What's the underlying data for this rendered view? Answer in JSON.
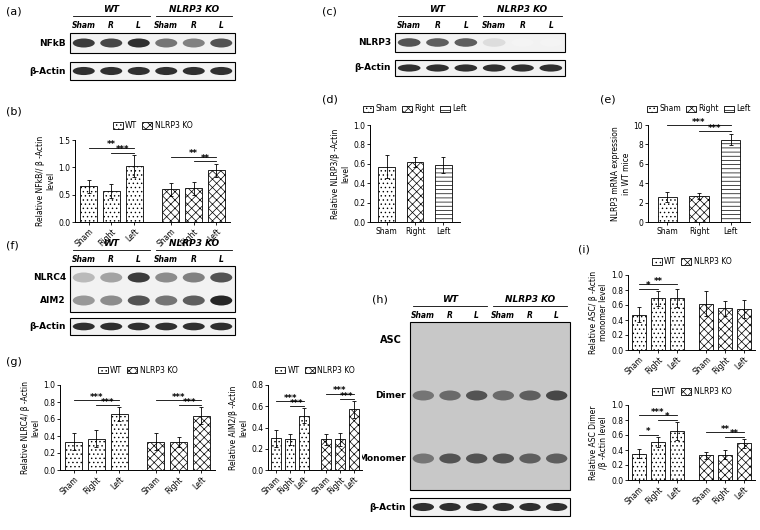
{
  "blots": [
    {
      "panel": "(a)",
      "groups": [
        "WT",
        "NLRP3 KO"
      ],
      "lanes": [
        "Sham",
        "R",
        "L"
      ],
      "boxes": [
        {
          "rows": [
            {
              "label": "NFkB",
              "band_intensity": [
                0.85,
                0.8,
                0.9,
                0.6,
                0.55,
                0.75
              ]
            }
          ]
        },
        {
          "rows": [
            {
              "label": "β-Actin",
              "band_intensity": [
                0.9,
                0.9,
                0.9,
                0.9,
                0.9,
                0.9
              ]
            }
          ]
        }
      ]
    },
    {
      "panel": "(c)",
      "groups": [
        "WT",
        "NLRP3 KO"
      ],
      "lanes": [
        "Sham",
        "R",
        "L"
      ],
      "boxes": [
        {
          "rows": [
            {
              "label": "NLRP3",
              "band_intensity": [
                0.75,
                0.7,
                0.7,
                0.15,
                0.05,
                0.05
              ]
            }
          ]
        },
        {
          "rows": [
            {
              "label": "β-Actin",
              "band_intensity": [
                0.9,
                0.9,
                0.9,
                0.9,
                0.9,
                0.9
              ]
            }
          ]
        }
      ]
    },
    {
      "panel": "(f)",
      "groups": [
        "WT",
        "NLRP3 KO"
      ],
      "lanes": [
        "Sham",
        "R",
        "L"
      ],
      "boxes": [
        {
          "rows": [
            {
              "label": "NLRC4",
              "band_intensity": [
                0.3,
                0.4,
                0.85,
                0.5,
                0.55,
                0.75
              ]
            },
            {
              "label": "AIM2",
              "band_intensity": [
                0.45,
                0.5,
                0.75,
                0.6,
                0.7,
                0.95
              ]
            }
          ]
        },
        {
          "rows": [
            {
              "label": "β-Actin",
              "band_intensity": [
                0.9,
                0.9,
                0.9,
                0.9,
                0.9,
                0.9
              ]
            }
          ]
        }
      ]
    },
    {
      "panel": "(h)",
      "groups": [
        "WT",
        "NLRP3 KO"
      ],
      "lanes": [
        "Sham",
        "R",
        "L"
      ],
      "boxes": [
        {
          "label": "ASC",
          "rows": [
            {
              "label": "Dimer",
              "band_intensity": [
                0.6,
                0.65,
                0.75,
                0.65,
                0.7,
                0.8
              ]
            },
            {
              "label": "Monomer",
              "band_intensity": [
                0.6,
                0.75,
                0.75,
                0.75,
                0.7,
                0.7
              ]
            }
          ]
        },
        {
          "rows": [
            {
              "label": "β-Actin",
              "band_intensity": [
                0.9,
                0.9,
                0.9,
                0.9,
                0.9,
                0.9
              ]
            }
          ]
        }
      ]
    }
  ],
  "chart_data": [
    {
      "type": "bar",
      "panel": "(b)",
      "y_label": "Relative NFkB// β -Actin\nlevel",
      "categories": [
        "Sham",
        "Right",
        "Left"
      ],
      "series": [
        {
          "name": "WT",
          "color": "#ffffff",
          "values": [
            0.65,
            0.57,
            1.03
          ],
          "errors": [
            0.12,
            0.13,
            0.2
          ]
        },
        {
          "name": "NLRP3 KO",
          "color": "#ffffff",
          "values": [
            0.6,
            0.62,
            0.95
          ],
          "errors": [
            0.12,
            0.12,
            0.12
          ]
        }
      ],
      "ylim": [
        0.0,
        1.5
      ],
      "yticks": [
        0.0,
        0.5,
        1.0,
        1.5
      ],
      "legend": "top",
      "significance": [
        {
          "series": "WT",
          "from": "Sham",
          "to": "Left",
          "label": "**"
        },
        {
          "series": "WT",
          "from": "Right",
          "to": "Left",
          "label": "***"
        },
        {
          "series": "NLRP3 KO",
          "from": "Sham",
          "to": "Left",
          "label": "**"
        },
        {
          "series": "NLRP3 KO",
          "from": "Right",
          "to": "Left",
          "label": "**"
        }
      ]
    },
    {
      "type": "bar",
      "panel": "(d)",
      "y_label": "Relative NLRP3/β -Actin\nlevel",
      "categories": [
        "Sham",
        "Right",
        "Left"
      ],
      "values": [
        0.57,
        0.62,
        0.59
      ],
      "errors": [
        0.12,
        0.05,
        0.08
      ],
      "colors": [
        "#ffffff",
        "#ffffff",
        "#ffffff"
      ],
      "ylim": [
        0.0,
        1.0
      ],
      "yticks": [
        0.0,
        0.2,
        0.4,
        0.6,
        0.8,
        1.0
      ],
      "legend": "top"
    },
    {
      "type": "bar",
      "panel": "(e)",
      "y_label": "NLRP3 mRNA expression\nin WT mice",
      "categories": [
        "Sham",
        "Right",
        "Left"
      ],
      "values": [
        2.6,
        2.7,
        8.5
      ],
      "errors": [
        0.5,
        0.3,
        0.6
      ],
      "colors": [
        "#ffffff",
        "#ffffff",
        "#ffffff"
      ],
      "ylim": [
        0,
        10
      ],
      "yticks": [
        0,
        2,
        4,
        6,
        8,
        10
      ],
      "legend": "top",
      "significance": [
        {
          "from": "Sham",
          "to": "Left",
          "label": "***"
        },
        {
          "from": "Right",
          "to": "Left",
          "label": "***"
        }
      ]
    },
    {
      "type": "bar",
      "panel": "(g)",
      "y_label": "Relative NLRC4/ β -Actin\nlevel",
      "categories": [
        "Sham",
        "Right",
        "Left"
      ],
      "series": [
        {
          "name": "WT",
          "color": "#ffffff",
          "values": [
            0.33,
            0.37,
            0.66
          ],
          "errors": [
            0.1,
            0.1,
            0.08
          ]
        },
        {
          "name": "NLRP3 KO",
          "color": "#ffffff",
          "values": [
            0.33,
            0.33,
            0.64
          ],
          "errors": [
            0.1,
            0.06,
            0.1
          ]
        }
      ],
      "ylim": [
        0.0,
        1.0
      ],
      "yticks": [
        0.0,
        0.2,
        0.4,
        0.6,
        0.8,
        1.0
      ],
      "legend": "top",
      "significance": [
        {
          "series": "WT",
          "from": "Sham",
          "to": "Left",
          "label": "***"
        },
        {
          "series": "WT",
          "from": "Right",
          "to": "Left",
          "label": "***"
        },
        {
          "series": "NLRP3 KO",
          "from": "Sham",
          "to": "Left",
          "label": "***"
        },
        {
          "series": "NLRP3 KO",
          "from": "Right",
          "to": "Left",
          "label": "***"
        }
      ]
    },
    {
      "type": "bar",
      "y_label": "Relative AIM2/β -Actin\nlevel",
      "categories": [
        "Sham",
        "Right",
        "Left"
      ],
      "series": [
        {
          "name": "WT",
          "color": "#ffffff",
          "values": [
            0.3,
            0.29,
            0.51
          ],
          "errors": [
            0.08,
            0.05,
            0.07
          ]
        },
        {
          "name": "NLRP3 KO",
          "color": "#ffffff",
          "values": [
            0.29,
            0.29,
            0.57
          ],
          "errors": [
            0.05,
            0.06,
            0.08
          ]
        }
      ],
      "ylim": [
        0.0,
        0.8
      ],
      "yticks": [
        0.0,
        0.2,
        0.4,
        0.6,
        0.8
      ],
      "legend": "top",
      "significance": [
        {
          "series": "WT",
          "from": "Sham",
          "to": "Left",
          "label": "***"
        },
        {
          "series": "WT",
          "from": "Right",
          "to": "Left",
          "label": "***"
        },
        {
          "series": "NLRP3 KO",
          "from": "Sham",
          "to": "Left",
          "label": "***"
        },
        {
          "series": "NLRP3 KO",
          "from": "Right",
          "to": "Left",
          "label": "***"
        }
      ]
    },
    {
      "type": "bar",
      "panel": "(i)",
      "y_label": "Relative ASC/ β -Actin\nmonomer level",
      "categories": [
        "Sham",
        "Right",
        "Left"
      ],
      "series": [
        {
          "name": "WT",
          "color": "#ffffff",
          "values": [
            0.47,
            0.69,
            0.7
          ],
          "errors": [
            0.1,
            0.1,
            0.12
          ]
        },
        {
          "name": "NLRP3 KO",
          "color": "#ffffff",
          "values": [
            0.62,
            0.56,
            0.55
          ],
          "errors": [
            0.17,
            0.1,
            0.12
          ]
        }
      ],
      "ylim": [
        0.0,
        1.0
      ],
      "yticks": [
        0.0,
        0.2,
        0.4,
        0.6,
        0.8,
        1.0
      ],
      "legend": "top",
      "significance": [
        {
          "series": "WT",
          "from": "Sham",
          "to": "Right",
          "label": "*"
        },
        {
          "series": "WT",
          "from": "Sham",
          "to": "Left",
          "label": "**"
        }
      ]
    },
    {
      "type": "bar",
      "y_label": "Relative ASC Dimer\n/β -Actin level",
      "categories": [
        "Sham",
        "Right",
        "Left"
      ],
      "series": [
        {
          "name": "WT",
          "color": "#ffffff",
          "values": [
            0.35,
            0.51,
            0.66
          ],
          "errors": [
            0.06,
            0.07,
            0.12
          ]
        },
        {
          "name": "NLRP3 KO",
          "color": "#ffffff",
          "values": [
            0.33,
            0.34,
            0.49
          ],
          "errors": [
            0.05,
            0.06,
            0.06
          ]
        }
      ],
      "ylim": [
        0.0,
        1.0
      ],
      "yticks": [
        0.0,
        0.2,
        0.4,
        0.6,
        0.8,
        1.0
      ],
      "legend": "top",
      "significance": [
        {
          "series": "WT",
          "from": "Sham",
          "to": "Right",
          "label": "*"
        },
        {
          "series": "WT",
          "from": "Sham",
          "to": "Left",
          "label": "***"
        },
        {
          "series": "WT",
          "from": "Right",
          "to": "Left",
          "label": "*"
        },
        {
          "series": "NLRP3 KO",
          "from": "Sham",
          "to": "Left",
          "label": "**"
        },
        {
          "series": "NLRP3 KO",
          "from": "Right",
          "to": "Left",
          "label": "**"
        }
      ]
    }
  ]
}
